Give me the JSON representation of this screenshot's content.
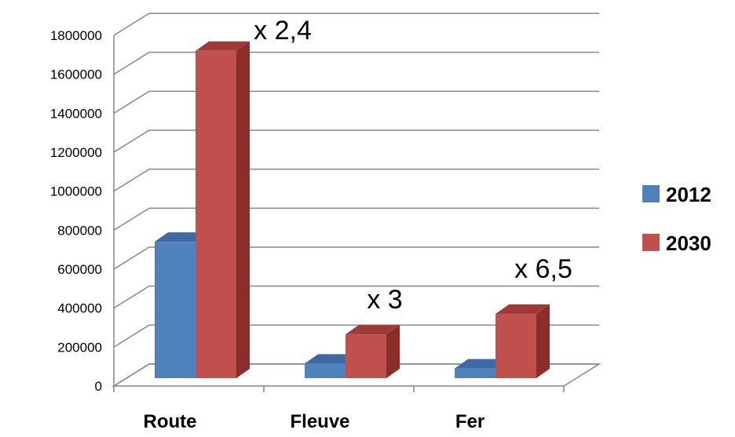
{
  "chart_data": {
    "type": "bar",
    "categories": [
      "Route",
      "Fleuve",
      "Fer"
    ],
    "series": [
      {
        "name": "2012",
        "values": [
          700000,
          75000,
          50000
        ],
        "color": "#4F81BD",
        "side_color": "#36598A",
        "top_color": "#3E6AA3"
      },
      {
        "name": "2030",
        "values": [
          1680000,
          225000,
          330000
        ],
        "color": "#C0504D",
        "side_color": "#8B2D2B",
        "top_color": "#A03A38"
      }
    ],
    "y_ticks": [
      "0",
      "200000",
      "400000",
      "600000",
      "800000",
      "1000000",
      "1200000",
      "1400000",
      "1600000",
      "1800000"
    ],
    "ylim": [
      0,
      1800000
    ],
    "grid": true,
    "legend_position": "right",
    "annotations": [
      "x 2,4",
      "x 3",
      "x 6,5"
    ]
  }
}
